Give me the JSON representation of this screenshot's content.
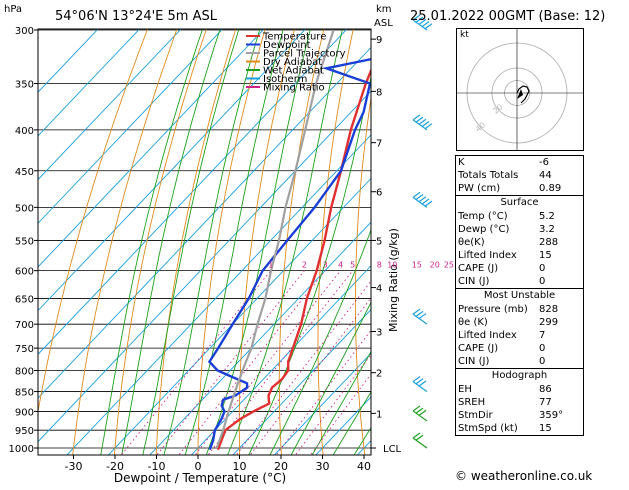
{
  "header": {
    "units": "hPa",
    "location": "54°06'N  13°24'E  5m  ASL",
    "km_label": "km",
    "asl_label": "ASL",
    "date": "25.01.2022  00GMT  (Base: 12)"
  },
  "legend": [
    {
      "label": "Temperature",
      "color": "#e03030"
    },
    {
      "label": "Dewpoint",
      "color": "#1a3fd6"
    },
    {
      "label": "Parcel Trajectory",
      "color": "#a0a0a0"
    },
    {
      "label": "Dry Adiabat",
      "color": "#e08a1a"
    },
    {
      "label": "Wet Adiabat",
      "color": "#1aa01a"
    },
    {
      "label": "Isotherm",
      "color": "#1aa0e0"
    },
    {
      "label": "Mixing Ratio",
      "color": "#d0208a"
    }
  ],
  "chart_data": {
    "type": "line",
    "title": "",
    "xlabel": "Dewpoint / Temperature (°C)",
    "ylabel": "hPa",
    "right_axis_label": "Mixing Ratio (g/kg)",
    "x_ticks": [
      -30,
      -20,
      -10,
      0,
      10,
      20,
      30,
      40
    ],
    "pressure_levels": [
      300,
      350,
      400,
      450,
      500,
      550,
      600,
      650,
      700,
      750,
      800,
      850,
      900,
      950,
      1000
    ],
    "km_ticks": [
      {
        "km": "1",
        "p": 905
      },
      {
        "km": "2",
        "p": 805
      },
      {
        "km": "3",
        "p": 715
      },
      {
        "km": "4",
        "p": 630
      },
      {
        "km": "5",
        "p": 550
      },
      {
        "km": "6",
        "p": 478
      },
      {
        "km": "7",
        "p": 415
      },
      {
        "km": "8",
        "p": 358
      },
      {
        "km": "9",
        "p": 308
      }
    ],
    "lcl_label": "LCL",
    "lcl_pressure": 1000,
    "mixing_ratio_labels": [
      "1",
      "2",
      "3",
      "4",
      "5",
      "8",
      "10",
      "15",
      "20",
      "25"
    ],
    "series": [
      {
        "name": "Temperature",
        "color": "#e03030",
        "points": [
          [
            1005,
            5.2
          ],
          [
            980,
            4
          ],
          [
            950,
            2.5
          ],
          [
            920,
            3.5
          ],
          [
            900,
            5
          ],
          [
            880,
            7
          ],
          [
            860,
            5
          ],
          [
            840,
            4
          ],
          [
            820,
            4.5
          ],
          [
            800,
            4
          ],
          [
            780,
            2
          ],
          [
            750,
            0
          ],
          [
            700,
            -3.5
          ],
          [
            650,
            -8
          ],
          [
            600,
            -12
          ],
          [
            550,
            -17
          ],
          [
            500,
            -23
          ],
          [
            450,
            -29
          ],
          [
            400,
            -36
          ],
          [
            350,
            -43
          ],
          [
            300,
            -50
          ]
        ]
      },
      {
        "name": "Dewpoint",
        "color": "#1a3fd6",
        "points": [
          [
            1005,
            3.2
          ],
          [
            980,
            2
          ],
          [
            950,
            0
          ],
          [
            920,
            -1
          ],
          [
            900,
            -2
          ],
          [
            885,
            -4
          ],
          [
            870,
            -5
          ],
          [
            860,
            -3
          ],
          [
            840,
            -2
          ],
          [
            830,
            -3
          ],
          [
            815,
            -8
          ],
          [
            800,
            -13
          ],
          [
            780,
            -17
          ],
          [
            750,
            -18
          ],
          [
            700,
            -20
          ],
          [
            650,
            -22
          ],
          [
            600,
            -25
          ],
          [
            550,
            -26
          ],
          [
            500,
            -27
          ],
          [
            450,
            -29
          ],
          [
            400,
            -35
          ],
          [
            380,
            -37
          ],
          [
            350,
            -42
          ],
          [
            335,
            -56
          ],
          [
            325,
            -46
          ],
          [
            315,
            -45
          ],
          [
            300,
            -48
          ]
        ]
      },
      {
        "name": "Parcel Trajectory",
        "color": "#a0a0a0",
        "points": [
          [
            1000,
            4.5
          ],
          [
            950,
            2
          ],
          [
            900,
            -1
          ],
          [
            850,
            -4
          ],
          [
            800,
            -7
          ],
          [
            750,
            -10
          ],
          [
            700,
            -14
          ],
          [
            650,
            -18
          ],
          [
            600,
            -23
          ],
          [
            550,
            -28
          ],
          [
            500,
            -34
          ],
          [
            450,
            -40
          ],
          [
            400,
            -47
          ],
          [
            350,
            -55
          ],
          [
            300,
            -63
          ]
        ]
      }
    ],
    "wind_barbs": [
      {
        "p": 1000,
        "dir": 359,
        "spd": 15
      },
      {
        "p": 925,
        "dir": 350,
        "spd": 25
      },
      {
        "p": 850,
        "dir": 330,
        "spd": 25
      },
      {
        "p": 700,
        "dir": 300,
        "spd": 30
      },
      {
        "p": 500,
        "dir": 290,
        "spd": 45
      },
      {
        "p": 400,
        "dir": 280,
        "spd": 50
      },
      {
        "p": 300,
        "dir": 275,
        "spd": 60
      }
    ]
  },
  "hodograph": {
    "label": "kt",
    "ring_labels": [
      "20",
      "40"
    ]
  },
  "indices": {
    "top": [
      {
        "label": "K",
        "value": "-6"
      },
      {
        "label": "Totals Totals",
        "value": "44"
      },
      {
        "label": "PW (cm)",
        "value": "0.89"
      }
    ],
    "surface": {
      "title": "Surface",
      "rows": [
        {
          "label": "Temp (°C)",
          "value": "5.2"
        },
        {
          "label": "Dewp (°C)",
          "value": "3.2"
        },
        {
          "label": "θe(K)",
          "value": "288"
        },
        {
          "label": "Lifted Index",
          "value": "15"
        },
        {
          "label": "CAPE (J)",
          "value": "0"
        },
        {
          "label": "CIN (J)",
          "value": "0"
        }
      ]
    },
    "unstable": {
      "title": "Most Unstable",
      "rows": [
        {
          "label": "Pressure (mb)",
          "value": "828"
        },
        {
          "label": "θe (K)",
          "value": "299"
        },
        {
          "label": "Lifted Index",
          "value": "7"
        },
        {
          "label": "CAPE (J)",
          "value": "0"
        },
        {
          "label": "CIN (J)",
          "value": "0"
        }
      ]
    },
    "hodo": {
      "title": "Hodograph",
      "rows": [
        {
          "label": "EH",
          "value": "86"
        },
        {
          "label": "SREH",
          "value": "77"
        },
        {
          "label": "StmDir",
          "value": "359°"
        },
        {
          "label": "StmSpd (kt)",
          "value": "15"
        }
      ]
    }
  },
  "footer": {
    "copyright": "© weatheronline.co.uk",
    "copyright_icon": "copyright-icon"
  }
}
